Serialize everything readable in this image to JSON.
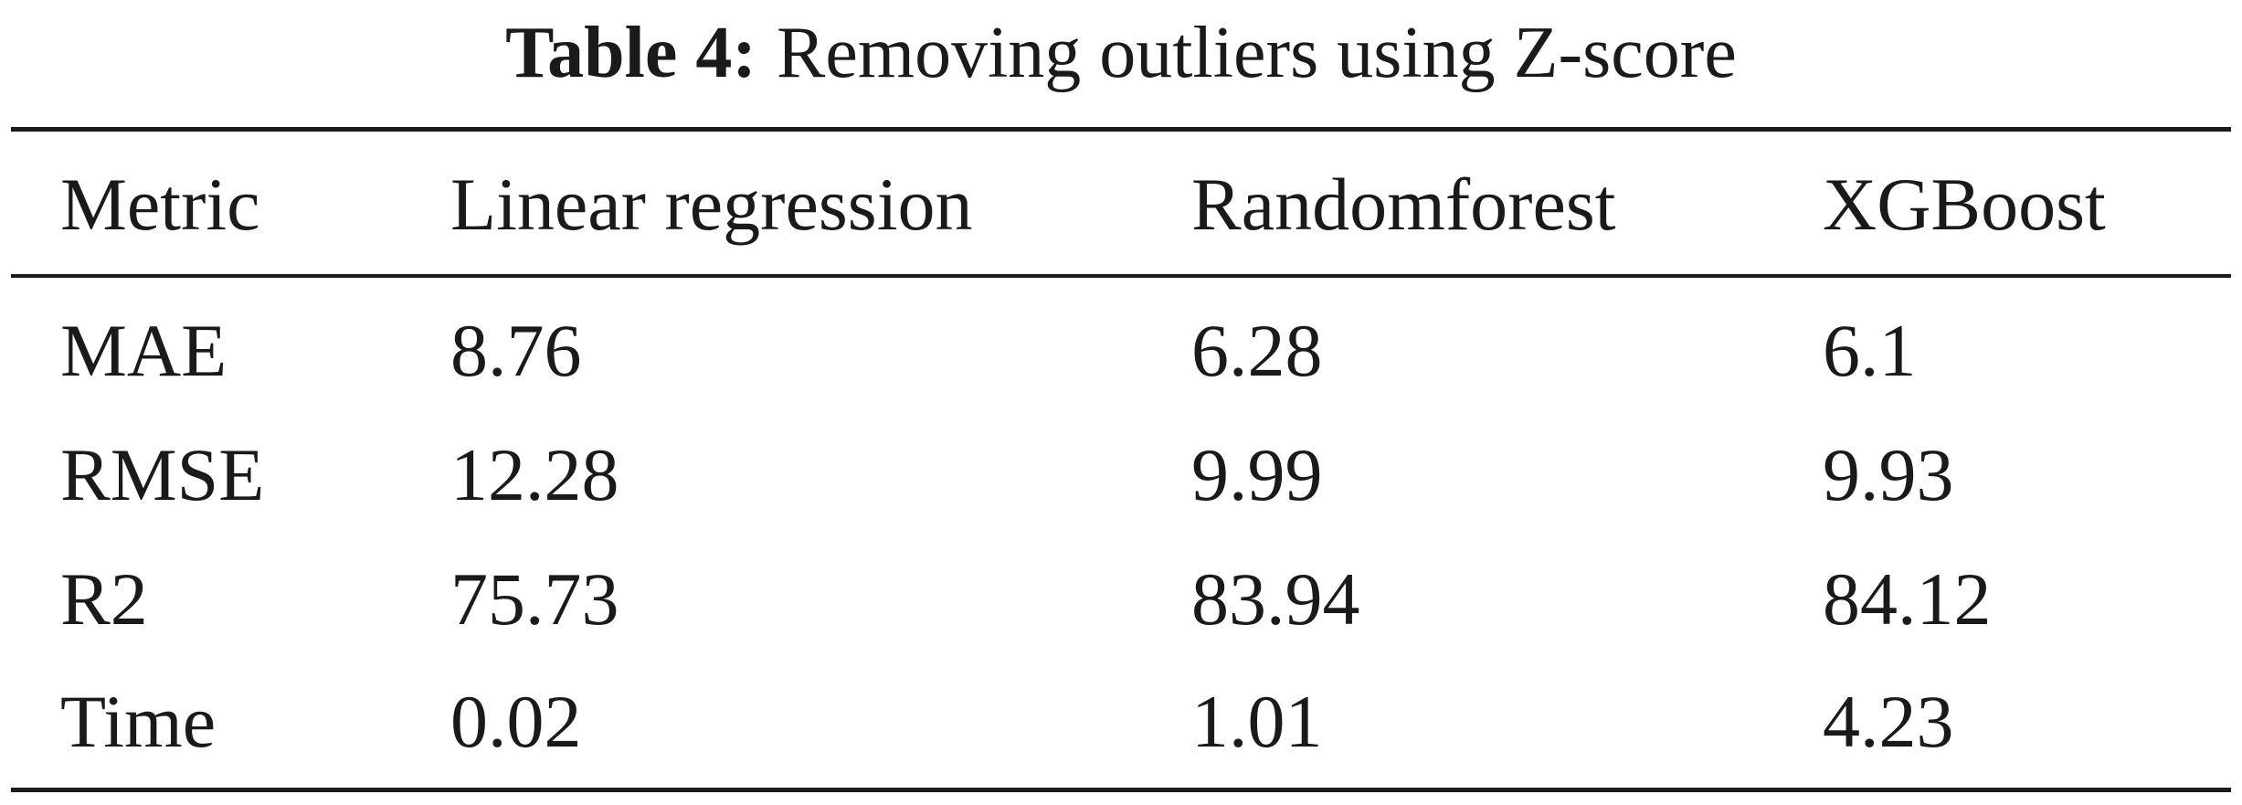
{
  "caption": {
    "label": "Table 4:",
    "text": "Removing outliers using Z-score"
  },
  "table": {
    "header": [
      "Metric",
      "Linear regression",
      "Randomforest",
      "XGBoost"
    ],
    "rows": [
      [
        "MAE",
        "8.76",
        "6.28",
        "6.1"
      ],
      [
        "RMSE",
        "12.28",
        "9.99",
        "9.93"
      ],
      [
        "R2",
        "75.73",
        "83.94",
        "84.12"
      ],
      [
        "Time",
        "0.02",
        "1.01",
        "4.23"
      ]
    ]
  }
}
